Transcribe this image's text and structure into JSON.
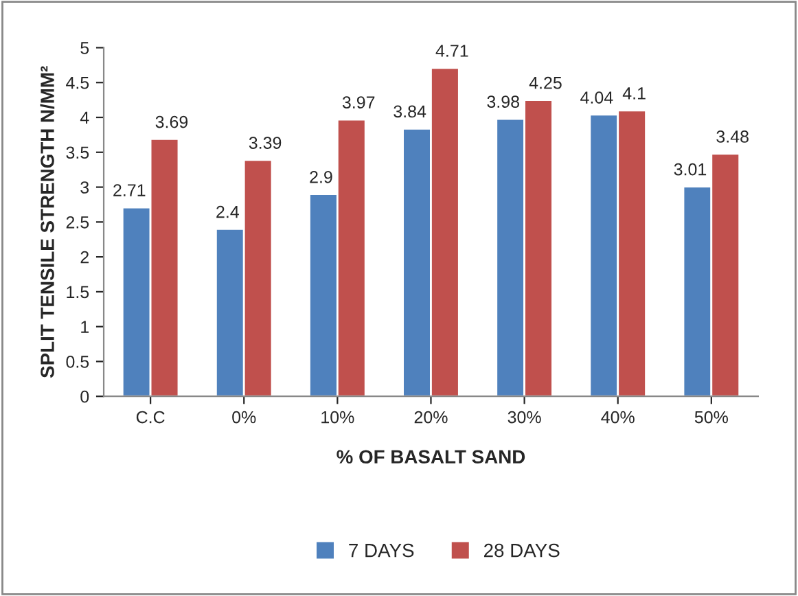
{
  "chart_data": {
    "type": "bar",
    "xlabel": "% OF BASALT SAND",
    "ylabel": "SPLIT TENSILE STRENGTH N/MM²",
    "categories": [
      "C.C",
      "0%",
      "10%",
      "20%",
      "30%",
      "40%",
      "50%"
    ],
    "series": [
      {
        "name": "7 DAYS",
        "color": "#4f81bd",
        "values": [
          2.71,
          2.4,
          2.9,
          3.84,
          3.98,
          4.04,
          3.01
        ]
      },
      {
        "name": "28 DAYS",
        "color": "#c0504d",
        "values": [
          3.69,
          3.39,
          3.97,
          4.71,
          4.25,
          4.1,
          3.48
        ]
      }
    ],
    "ylim": [
      0,
      5
    ],
    "yticks": [
      0,
      0.5,
      1,
      1.5,
      2,
      2.5,
      3,
      3.5,
      4,
      4.5,
      5
    ],
    "data_labels": true,
    "grid": false,
    "legend": "bottom"
  }
}
